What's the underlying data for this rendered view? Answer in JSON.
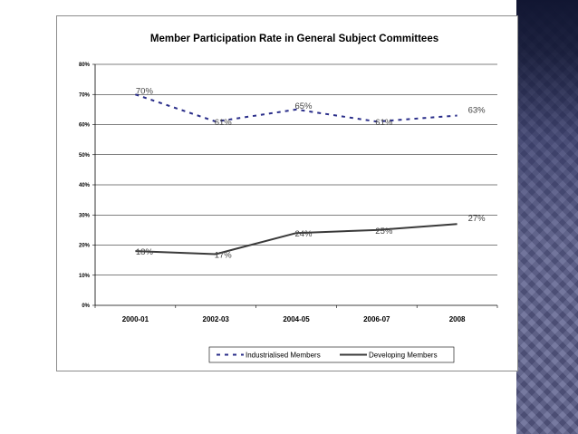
{
  "chart_data": {
    "type": "line",
    "title": "Member Participation Rate in General Subject Committees",
    "categories": [
      "2000-01",
      "2002-03",
      "2004-05",
      "2006-07",
      "2008"
    ],
    "ylim": [
      0,
      80
    ],
    "yticks": [
      0,
      10,
      20,
      30,
      40,
      50,
      60,
      70,
      80
    ],
    "ytick_labels": [
      "0%",
      "10%",
      "20%",
      "30%",
      "40%",
      "50%",
      "60%",
      "70%",
      "80%"
    ],
    "grid": true,
    "legend_position": "bottom-right",
    "series": [
      {
        "name": "Industrialised Members",
        "values": [
          70,
          61,
          65,
          61,
          63
        ],
        "labels": [
          "70%",
          "61%",
          "65%",
          "61%",
          "63%"
        ],
        "color": "#2a2e8a",
        "style": "dashed"
      },
      {
        "name": "Developing Members",
        "values": [
          18,
          17,
          24,
          25,
          27
        ],
        "labels": [
          "18%",
          "17%",
          "24%",
          "25%",
          "27%"
        ],
        "color": "#3a3a3a",
        "style": "solid"
      }
    ]
  },
  "decor": {
    "strip_color": "#5b5e8c"
  }
}
